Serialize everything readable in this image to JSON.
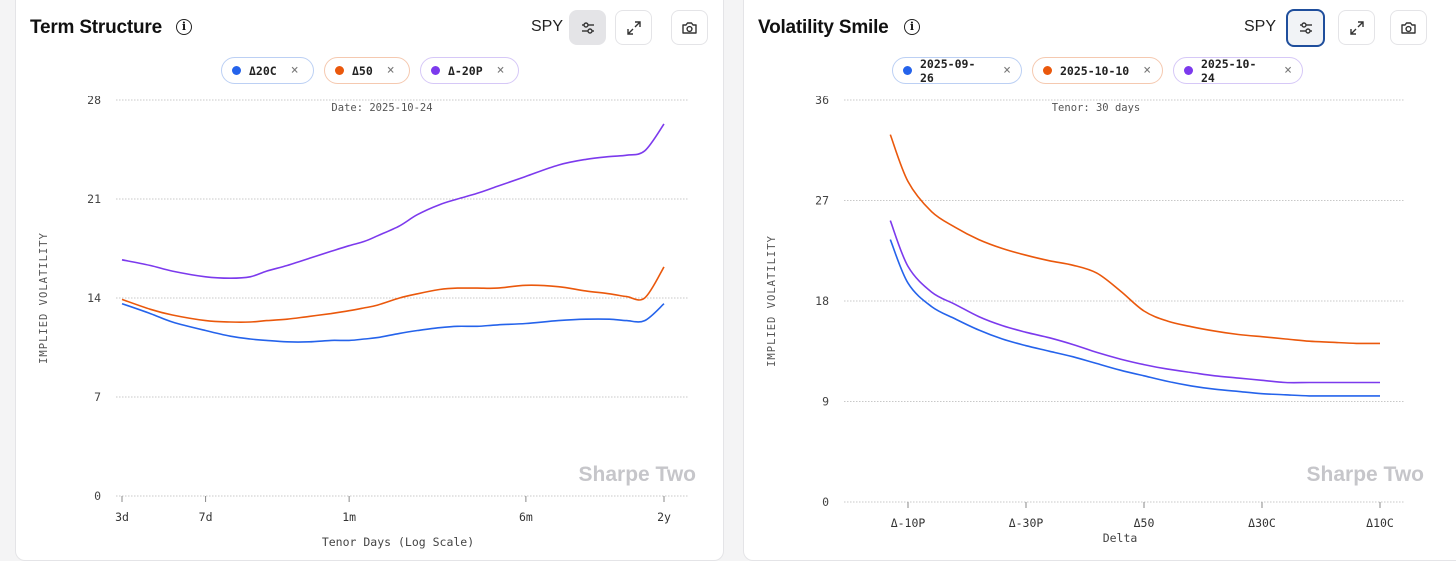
{
  "panels": {
    "term": {
      "title": "Term Structure",
      "ticker": "SPY",
      "info_icon": "i",
      "chips": [
        {
          "label": "Δ20C",
          "color": "#2563eb"
        },
        {
          "label": "Δ50",
          "color": "#ea580c"
        },
        {
          "label": "Δ-20P",
          "color": "#7c3aed"
        }
      ]
    },
    "smile": {
      "title": "Volatility Smile",
      "ticker": "SPY",
      "info_icon": "i",
      "chips": [
        {
          "label": "2025-09-26",
          "color": "#2563eb"
        },
        {
          "label": "2025-10-10",
          "color": "#ea580c"
        },
        {
          "label": "2025-10-24",
          "color": "#7c3aed"
        }
      ]
    }
  },
  "chip_close": "×",
  "watermark": "Sharpe Two",
  "chart_data": [
    {
      "type": "line",
      "title": "Term Structure",
      "annotation": "Date: 2025-10-24",
      "xlabel": "Tenor Days (Log Scale)",
      "ylabel": "IMPLIED VOLATILITY",
      "x_scale": "log",
      "x_ticks": [
        {
          "label": "3d",
          "value": 3
        },
        {
          "label": "7d",
          "value": 7
        },
        {
          "label": "1m",
          "value": 30
        },
        {
          "label": "6m",
          "value": 180
        },
        {
          "label": "2y",
          "value": 730
        }
      ],
      "ylim": [
        0,
        28
      ],
      "y_ticks": [
        0,
        7,
        14,
        21,
        28
      ],
      "grid": true,
      "x": [
        3,
        4,
        5,
        7,
        9,
        11,
        13,
        16,
        20,
        25,
        30,
        35,
        40,
        50,
        60,
        75,
        90,
        110,
        135,
        180,
        250,
        330,
        420,
        500,
        600,
        730
      ],
      "series": [
        {
          "name": "Δ20C",
          "color": "#2563eb",
          "values": [
            13.6,
            12.9,
            12.3,
            11.7,
            11.3,
            11.1,
            11.0,
            10.9,
            10.9,
            11.0,
            11.0,
            11.1,
            11.2,
            11.5,
            11.7,
            11.9,
            12.0,
            12.0,
            12.1,
            12.2,
            12.4,
            12.5,
            12.5,
            12.4,
            12.4,
            13.6
          ]
        },
        {
          "name": "Δ50",
          "color": "#ea580c",
          "values": [
            13.9,
            13.2,
            12.8,
            12.4,
            12.3,
            12.3,
            12.4,
            12.5,
            12.7,
            12.9,
            13.1,
            13.3,
            13.5,
            14.0,
            14.3,
            14.6,
            14.7,
            14.7,
            14.7,
            14.9,
            14.8,
            14.5,
            14.3,
            14.1,
            14.0,
            16.2
          ]
        },
        {
          "name": "Δ-20P",
          "color": "#7c3aed",
          "values": [
            16.7,
            16.3,
            15.9,
            15.5,
            15.4,
            15.5,
            15.9,
            16.3,
            16.8,
            17.3,
            17.7,
            18.0,
            18.4,
            19.1,
            19.9,
            20.6,
            21.0,
            21.4,
            21.9,
            22.6,
            23.4,
            23.8,
            24.0,
            24.1,
            24.4,
            26.3
          ]
        }
      ]
    },
    {
      "type": "line",
      "title": "Volatility Smile",
      "annotation": "Tenor: 30 days",
      "xlabel": "Delta",
      "ylabel": "IMPLIED VOLATILITY",
      "x_ticks": [
        {
          "label": "Δ-10P",
          "value": 1
        },
        {
          "label": "Δ-30P",
          "value": 2
        },
        {
          "label": "Δ50",
          "value": 3
        },
        {
          "label": "Δ30C",
          "value": 4
        },
        {
          "label": "Δ10C",
          "value": 5
        }
      ],
      "ylim": [
        0,
        36
      ],
      "y_ticks": [
        0,
        9,
        18,
        27,
        36
      ],
      "grid": true,
      "x": [
        0.85,
        1.0,
        1.2,
        1.4,
        1.6,
        1.8,
        2.0,
        2.2,
        2.4,
        2.6,
        2.8,
        3.0,
        3.2,
        3.4,
        3.6,
        3.8,
        4.0,
        4.2,
        4.4,
        4.6,
        4.8,
        5.0
      ],
      "series": [
        {
          "name": "2025-09-26",
          "color": "#2563eb",
          "values": [
            23.5,
            19.6,
            17.5,
            16.4,
            15.4,
            14.6,
            14.0,
            13.5,
            13.0,
            12.4,
            11.8,
            11.3,
            10.8,
            10.4,
            10.1,
            9.9,
            9.7,
            9.6,
            9.5,
            9.5,
            9.5,
            9.5
          ]
        },
        {
          "name": "2025-10-10",
          "color": "#ea580c",
          "values": [
            32.9,
            28.7,
            26.0,
            24.6,
            23.5,
            22.7,
            22.1,
            21.6,
            21.2,
            20.5,
            18.9,
            17.1,
            16.2,
            15.7,
            15.3,
            15.0,
            14.8,
            14.6,
            14.4,
            14.3,
            14.2,
            14.2
          ]
        },
        {
          "name": "2025-10-24",
          "color": "#7c3aed",
          "values": [
            25.2,
            21.1,
            18.8,
            17.7,
            16.6,
            15.8,
            15.2,
            14.7,
            14.1,
            13.4,
            12.8,
            12.3,
            11.9,
            11.6,
            11.3,
            11.1,
            10.9,
            10.7,
            10.7,
            10.7,
            10.7,
            10.7
          ]
        }
      ]
    }
  ]
}
